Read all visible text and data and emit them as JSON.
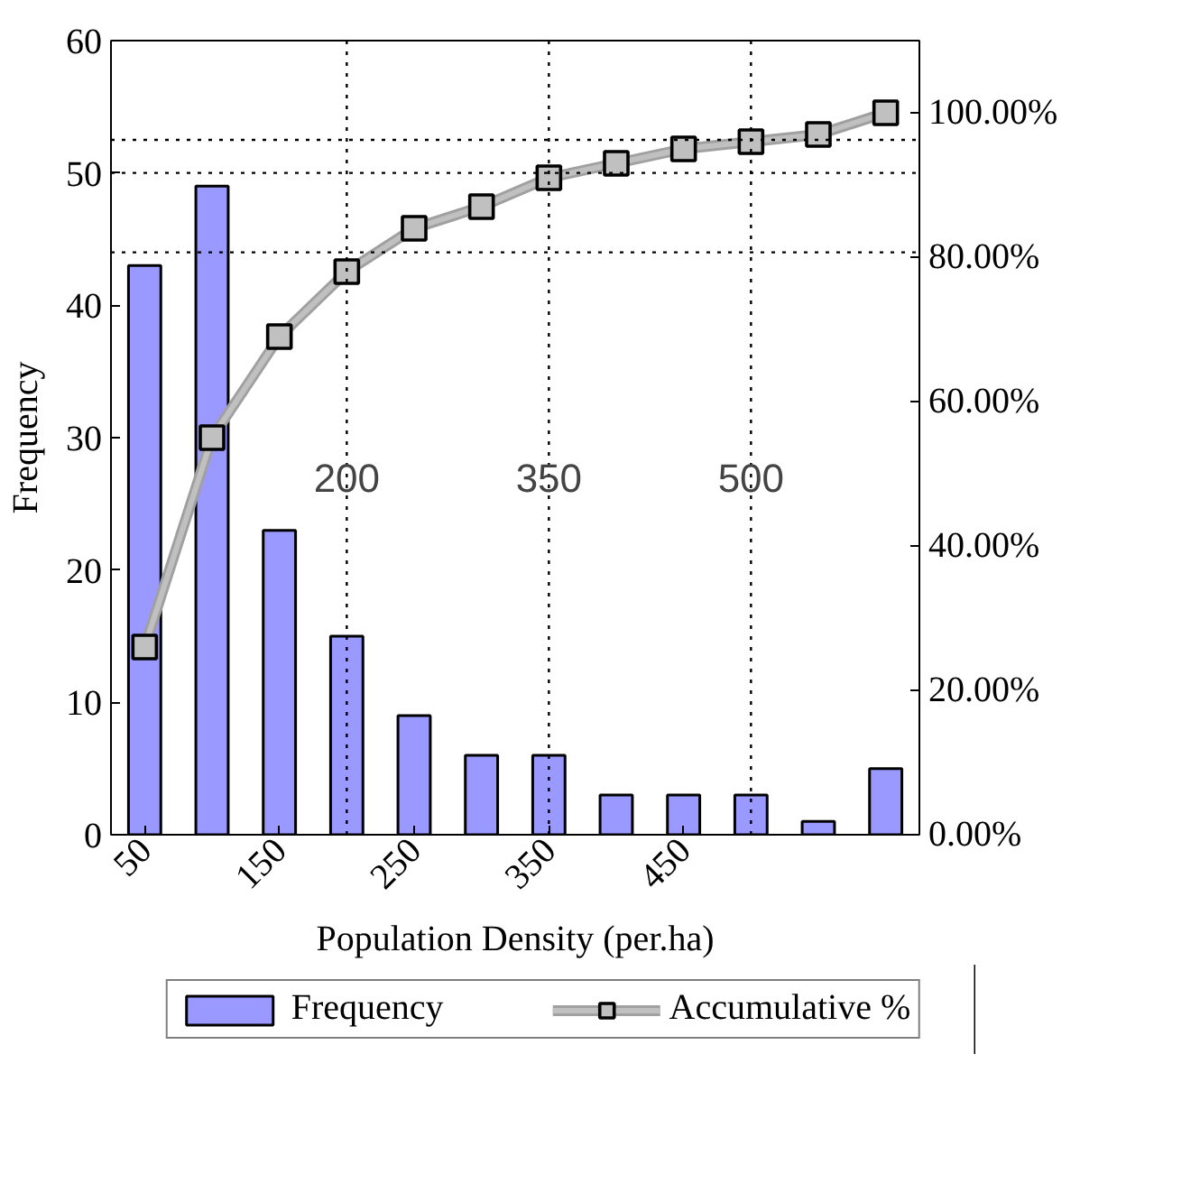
{
  "chart_data": {
    "type": "bar",
    "xlabel": "Population Density (per.ha)",
    "ylabel": "Frequency",
    "x": [
      50,
      100,
      150,
      200,
      250,
      300,
      350,
      400,
      450,
      500,
      550,
      600
    ],
    "series": [
      {
        "name": "Frequency",
        "color": "#9999ff",
        "values": [
          43,
          49,
          23,
          15,
          9,
          6,
          6,
          3,
          3,
          3,
          1,
          5
        ]
      },
      {
        "name": "Accumulative %",
        "type": "line",
        "axis": "y2",
        "color": "#c0c0c0",
        "marker": "square",
        "values": [
          26,
          55,
          69,
          78,
          84,
          87,
          91,
          93,
          95,
          96,
          97,
          100
        ]
      }
    ],
    "xlim": [
      25,
      625
    ],
    "xticks": [
      50,
      150,
      250,
      350,
      450
    ],
    "ylim": [
      0,
      60
    ],
    "yticks": [
      0,
      10,
      20,
      30,
      40,
      50,
      60
    ],
    "y2lim": [
      0,
      110
    ],
    "y2ticks": [
      {
        "value": 0,
        "label": "0.00%"
      },
      {
        "value": 20,
        "label": "20.00%"
      },
      {
        "value": 40,
        "label": "40.00%"
      },
      {
        "value": 60,
        "label": "60.00%"
      },
      {
        "value": 80,
        "label": "80.00%"
      },
      {
        "value": 100,
        "label": "100.00%"
      }
    ],
    "ref_lines": [
      {
        "axis": "y",
        "value": 44,
        "color": "#000000",
        "line_style": "dotted"
      },
      {
        "axis": "y",
        "value": 50,
        "color": "#000000",
        "line_style": "dotted"
      },
      {
        "axis": "y",
        "value": 52.5,
        "color": "#000000",
        "line_style": "dotted"
      },
      {
        "axis": "x",
        "value": 200,
        "label": "200",
        "color": "#000000",
        "line_style": "dotted"
      },
      {
        "axis": "x",
        "value": 350,
        "label": "350",
        "color": "#000000",
        "line_style": "dotted"
      },
      {
        "axis": "x",
        "value": 500,
        "label": "500",
        "color": "#000000",
        "line_style": "dotted"
      }
    ],
    "grid": false,
    "legend": "bottom"
  }
}
